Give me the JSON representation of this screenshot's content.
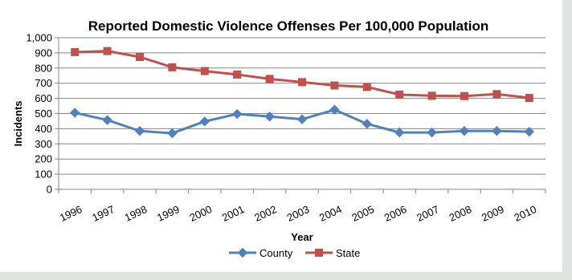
{
  "chart_data": {
    "type": "line",
    "title": "Reported Domestic Violence Offenses Per 100,000 Population",
    "xlabel": "Year",
    "ylabel": "Incidents",
    "categories": [
      "1996",
      "1997",
      "1998",
      "1999",
      "2000",
      "2001",
      "2002",
      "2003",
      "2004",
      "2005",
      "2006",
      "2007",
      "2008",
      "2009",
      "2010"
    ],
    "ylim": [
      0,
      1000
    ],
    "yticks": [
      "0",
      "100",
      "200",
      "300",
      "400",
      "500",
      "600",
      "700",
      "800",
      "900",
      "1,000"
    ],
    "grid": true,
    "legend_position": "bottom",
    "series": [
      {
        "name": "County",
        "color": "#4f81bd",
        "marker": "diamond",
        "values": [
          505,
          457,
          385,
          370,
          448,
          497,
          480,
          462,
          525,
          432,
          375,
          375,
          385,
          385,
          380
        ]
      },
      {
        "name": "State",
        "color": "#c0504d",
        "marker": "square",
        "values": [
          905,
          912,
          873,
          805,
          780,
          757,
          728,
          707,
          685,
          675,
          625,
          617,
          615,
          628,
          603
        ]
      }
    ]
  }
}
